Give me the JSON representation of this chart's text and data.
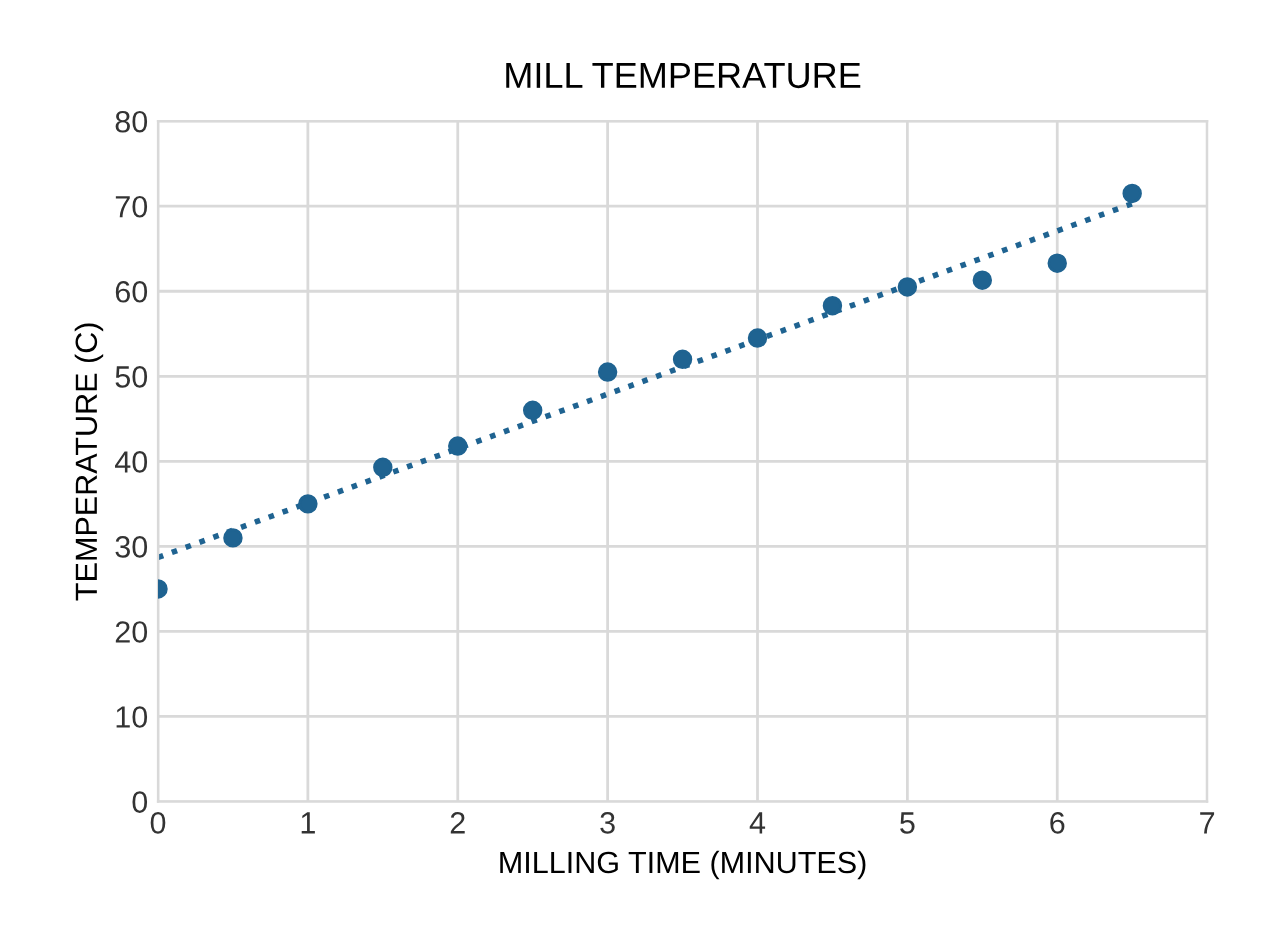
{
  "chart_data": {
    "type": "scatter",
    "title": "MILL TEMPERATURE",
    "xlabel": "MILLING TIME (MINUTES)",
    "ylabel": "TEMPERATURE (C)",
    "series": [
      {
        "color": "#1f6391",
        "marker": "circle",
        "x": [
          0,
          0.5,
          1,
          1.5,
          2,
          2.5,
          3,
          3.5,
          4,
          4.5,
          5,
          5.5,
          6,
          6.5
        ],
        "values": [
          25,
          31,
          35,
          39.3,
          41.8,
          46,
          50.5,
          52,
          54.5,
          58.3,
          60.5,
          61.3,
          63.3,
          71.5
        ]
      },
      {
        "type": "line",
        "color": "#1f6391",
        "line_style": "dotted",
        "marker": "none",
        "x": [
          0,
          6.5
        ],
        "values": [
          28.7,
          70.3
        ]
      }
    ],
    "xlim": [
      0,
      7
    ],
    "xticks": [
      0,
      1,
      2,
      3,
      4,
      5,
      6,
      7
    ],
    "ylim": [
      0,
      80
    ],
    "yticks": [
      0,
      10,
      20,
      30,
      40,
      50,
      60,
      70,
      80
    ],
    "grid": true
  }
}
